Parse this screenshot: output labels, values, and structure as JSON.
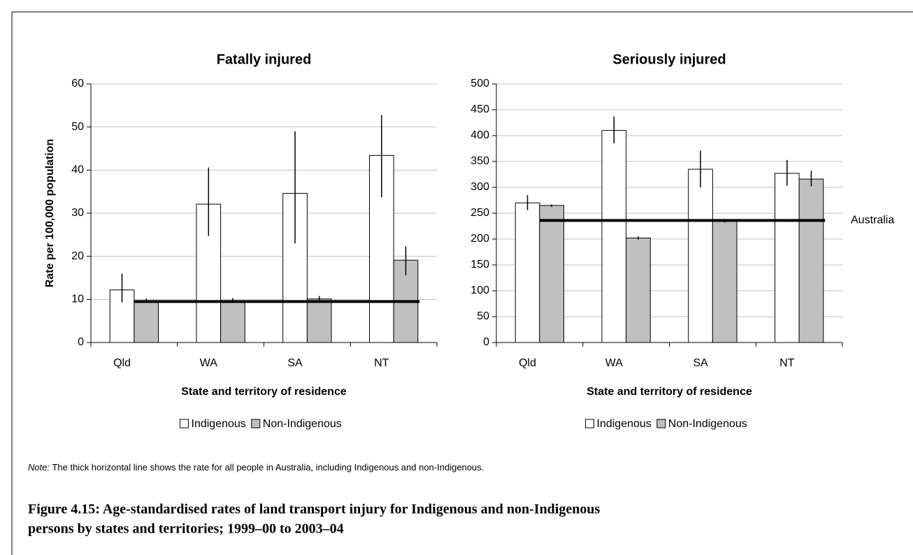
{
  "chart_data": [
    {
      "type": "bar",
      "title": "Fatally injured",
      "y_label": "Rate per 100,000 population",
      "x_label": "State and territory of residence",
      "categories": [
        "Qld",
        "WA",
        "SA",
        "NT"
      ],
      "series": [
        {
          "name": "Indigenous",
          "color": "#ffffff",
          "values": [
            12.2,
            32.1,
            34.6,
            43.4
          ],
          "lower": [
            9.3,
            24.7,
            23.0,
            33.7
          ],
          "upper": [
            16.0,
            40.6,
            49.0,
            52.8
          ]
        },
        {
          "name": "Non-Indigenous",
          "color": "#c0c0c0",
          "values": [
            9.7,
            9.7,
            10.1,
            19.1
          ],
          "lower": [
            9.4,
            9.2,
            9.4,
            15.6
          ],
          "upper": [
            10.2,
            10.3,
            10.8,
            22.3
          ]
        }
      ],
      "reference_value": 9.5,
      "ylim": [
        0,
        60
      ],
      "yticks": [
        0,
        10,
        20,
        30,
        40,
        50,
        60
      ],
      "grid": true
    },
    {
      "type": "bar",
      "title": "Seriously injured",
      "x_label": "State and territory of residence",
      "categories": [
        "Qld",
        "WA",
        "SA",
        "NT"
      ],
      "series": [
        {
          "name": "Indigenous",
          "color": "#ffffff",
          "values": [
            270,
            410,
            335,
            327
          ],
          "lower": [
            256,
            385,
            300,
            303
          ],
          "upper": [
            285,
            437,
            371,
            353
          ]
        },
        {
          "name": "Non-Indigenous",
          "color": "#c0c0c0",
          "values": [
            265,
            202,
            236,
            316
          ],
          "lower": [
            262,
            199,
            232,
            302
          ],
          "upper": [
            267,
            205,
            239,
            332
          ]
        }
      ],
      "reference_value": 236,
      "reference_label": "Australia",
      "ylim": [
        0,
        500
      ],
      "yticks": [
        0,
        50,
        100,
        150,
        200,
        250,
        300,
        350,
        400,
        450,
        500
      ],
      "grid": true
    }
  ],
  "note": {
    "label": "Note:",
    "text": " The thick horizontal line shows the rate for all people in Australia, including Indigenous and non-Indigenous."
  },
  "caption": [
    "Figure 4.15: Age-standardised rates of land transport injury for Indigenous and non-Indigenous",
    "persons by states and territories; 1999–00 to 2003–04"
  ]
}
